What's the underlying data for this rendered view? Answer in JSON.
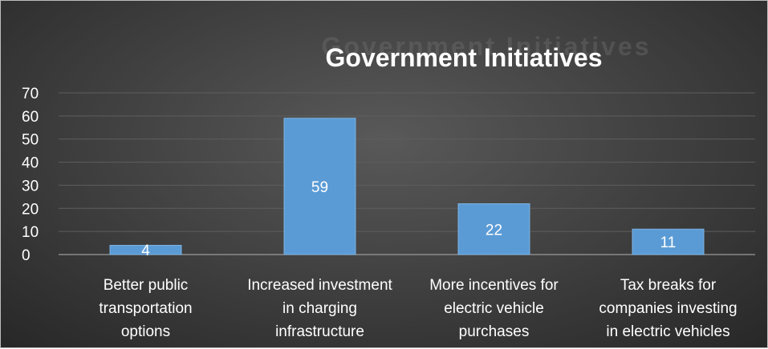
{
  "chart_data": {
    "type": "bar",
    "title": "Government Initiatives",
    "categories": [
      [
        "Better public",
        "transportation",
        "options"
      ],
      [
        "Increased investment",
        "in charging",
        "infrastructure"
      ],
      [
        "More incentives for",
        "electric vehicle",
        "purchases"
      ],
      [
        "Tax breaks for",
        "companies investing",
        "in electric vehicles"
      ]
    ],
    "values": [
      4,
      59,
      22,
      11
    ],
    "data_labels": [
      "4",
      "59",
      "22",
      "11"
    ],
    "ylim": [
      0,
      70
    ],
    "yticks": [
      0,
      10,
      20,
      30,
      40,
      50,
      60,
      70
    ],
    "grid": true,
    "legend": "none",
    "colors": {
      "bar": "#5b9bd5",
      "text": "#ffffff"
    }
  }
}
